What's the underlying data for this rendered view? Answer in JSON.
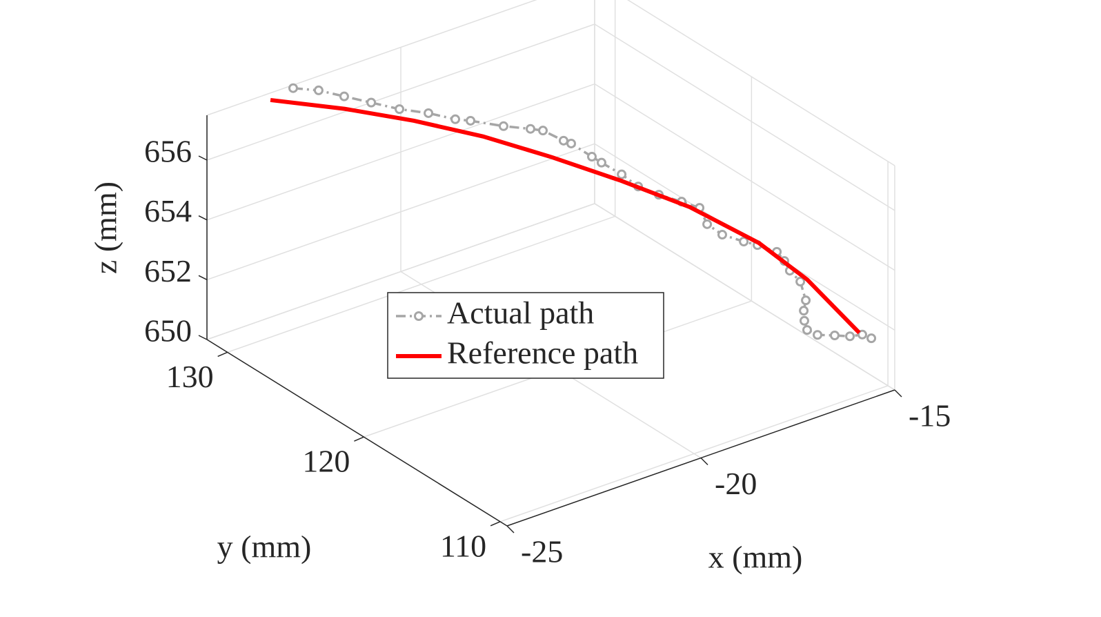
{
  "chart_data": {
    "type": "line3d",
    "xlabel": "x (mm)",
    "ylabel": "y (mm)",
    "zlabel": "z (mm)",
    "xlim": [
      -25,
      -15
    ],
    "ylim": [
      109.5,
      131.5
    ],
    "zlim": [
      650,
      657.5
    ],
    "xticks": [
      -25,
      -20,
      -15
    ],
    "yticks": [
      110,
      120,
      130
    ],
    "zticks": [
      650,
      652,
      654,
      656
    ],
    "grid": true,
    "legend": "center",
    "series": [
      {
        "name": "Actual path",
        "color": "#a6a6a6",
        "line_style": "dashdot",
        "marker": "o",
        "x": [
          -22.78,
          -22.26,
          -21.84,
          -21.4,
          -20.95,
          -20.42,
          -19.98,
          -19.69,
          -19.13,
          -18.52,
          -18.28,
          -18.05,
          -17.92,
          -17.77,
          -17.69,
          -17.59,
          -17.48,
          -17.12,
          -16.69,
          -16.4,
          -16.63,
          -16.5,
          -16.09,
          -15.8,
          -15.42,
          -15.38,
          -15.31,
          -15.11,
          -15.12,
          -15.19,
          -15.21,
          -15.17,
          -15.05,
          -14.86,
          -14.79,
          -14.7,
          -14.65
        ],
        "y": [
          131.49,
          131.1,
          130.42,
          129.69,
          128.9,
          128.28,
          127.56,
          127.27,
          126.44,
          126.2,
          125.97,
          125.11,
          124.92,
          123.83,
          123.35,
          122.16,
          121.26,
          120.77,
          120.32,
          119.83,
          118.62,
          117.88,
          117.47,
          117.29,
          116.95,
          116.51,
          116.31,
          116.11,
          115.68,
          115.63,
          115.53,
          115.44,
          115.02,
          114.3,
          113.38,
          112.73,
          112.21
        ],
        "z": [
          657.4,
          657.2,
          657.0,
          656.8,
          656.6,
          656.4,
          656.2,
          656.1,
          655.9,
          655.6,
          655.5,
          655.3,
          655.2,
          655.0,
          654.9,
          654.8,
          654.6,
          654.3,
          654.0,
          653.8,
          653.7,
          653.5,
          653.2,
          653.0,
          652.7,
          652.5,
          652.2,
          651.8,
          651.3,
          651.0,
          650.7,
          650.4,
          650.3,
          650.4,
          650.6,
          650.8,
          650.8
        ]
      },
      {
        "name": "Reference path",
        "color": "#ff0000",
        "line_style": "solid",
        "x": [
          -23.39,
          -22.16,
          -21.02,
          -19.9,
          -18.84,
          -17.77,
          -16.7,
          -15.72,
          -15.18,
          -14.86
        ],
        "y": [
          131.42,
          129.46,
          127.64,
          125.76,
          123.72,
          121.7,
          119.69,
          117.41,
          115.41,
          112.5
        ],
        "z": [
          657.3,
          657.0,
          656.6,
          656.1,
          655.5,
          654.8,
          654.0,
          653.0,
          652.1,
          651.0
        ]
      }
    ]
  }
}
